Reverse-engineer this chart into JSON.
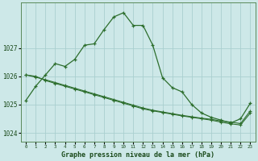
{
  "title": "Graphe pression niveau de la mer (hPa)",
  "background_color": "#cde8e8",
  "grid_color": "#aacfcf",
  "line_color": "#2d6e2d",
  "marker_color": "#2d6e2d",
  "xlim": [
    -0.5,
    23.5
  ],
  "ylim": [
    1023.7,
    1028.6
  ],
  "yticks": [
    1024,
    1025,
    1026,
    1027
  ],
  "xticks": [
    0,
    1,
    2,
    3,
    4,
    5,
    6,
    7,
    8,
    9,
    10,
    11,
    12,
    13,
    14,
    15,
    16,
    17,
    18,
    19,
    20,
    21,
    22,
    23
  ],
  "series1_x": [
    0,
    1,
    2,
    3,
    4,
    5,
    6,
    7,
    8,
    9,
    10,
    11,
    12,
    13,
    14,
    15,
    16,
    17,
    18,
    19,
    20,
    21,
    22,
    23
  ],
  "series1_y": [
    1025.15,
    1025.65,
    1026.05,
    1026.45,
    1026.35,
    1026.6,
    1027.1,
    1027.15,
    1027.65,
    1028.1,
    1028.25,
    1027.8,
    1027.8,
    1027.1,
    1025.95,
    1025.6,
    1025.45,
    1025.0,
    1024.7,
    1024.55,
    1024.45,
    1024.35,
    1024.5,
    1025.05
  ],
  "series2_x": [
    0,
    1,
    2,
    3,
    4,
    5,
    6,
    7,
    8,
    9,
    10,
    11,
    12,
    13,
    14,
    15,
    16,
    17,
    18,
    19,
    20,
    21,
    22,
    23
  ],
  "series2_y": [
    1026.05,
    1026.0,
    1025.85,
    1025.75,
    1025.65,
    1025.55,
    1025.45,
    1025.35,
    1025.25,
    1025.15,
    1025.05,
    1024.95,
    1024.85,
    1024.78,
    1024.72,
    1024.66,
    1024.6,
    1024.55,
    1024.5,
    1024.45,
    1024.38,
    1024.32,
    1024.28,
    1024.7
  ],
  "series3_x": [
    0,
    1,
    2,
    3,
    4,
    5,
    6,
    7,
    8,
    9,
    10,
    11,
    12,
    13,
    14,
    15,
    16,
    17,
    18,
    19,
    20,
    21,
    22,
    23
  ],
  "series3_y": [
    1026.05,
    1025.97,
    1025.88,
    1025.78,
    1025.68,
    1025.58,
    1025.48,
    1025.38,
    1025.28,
    1025.18,
    1025.08,
    1024.98,
    1024.88,
    1024.8,
    1024.74,
    1024.68,
    1024.62,
    1024.57,
    1024.52,
    1024.48,
    1024.42,
    1024.38,
    1024.33,
    1024.78
  ]
}
